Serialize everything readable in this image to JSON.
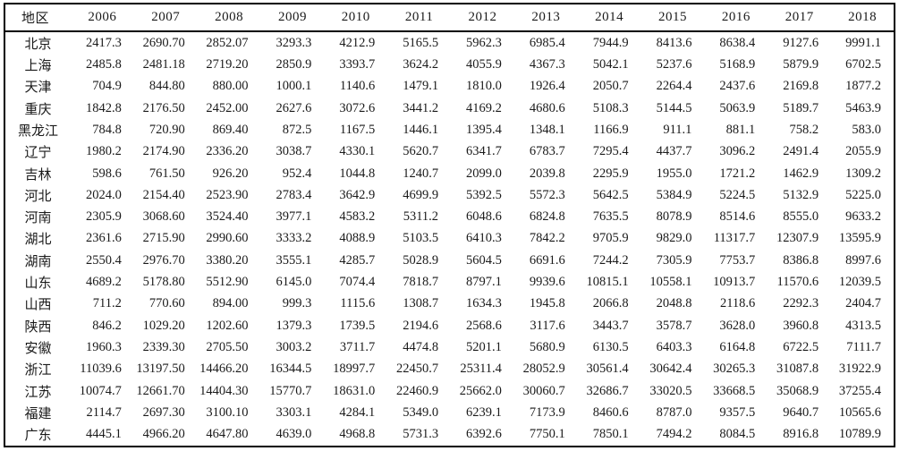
{
  "table": {
    "header": {
      "region_label": "地区",
      "years": [
        "2006",
        "2007",
        "2008",
        "2009",
        "2010",
        "2011",
        "2012",
        "2013",
        "2014",
        "2015",
        "2016",
        "2017",
        "2018"
      ]
    },
    "rows": [
      {
        "region": "北京",
        "values": [
          "2417.3",
          "2690.70",
          "2852.07",
          "3293.3",
          "4212.9",
          "5165.5",
          "5962.3",
          "6985.4",
          "7944.9",
          "8413.6",
          "8638.4",
          "9127.6",
          "9991.1"
        ]
      },
      {
        "region": "上海",
        "values": [
          "2485.8",
          "2481.18",
          "2719.20",
          "2850.9",
          "3393.7",
          "3624.2",
          "4055.9",
          "4367.3",
          "5042.1",
          "5237.6",
          "5168.9",
          "5879.9",
          "6702.5"
        ]
      },
      {
        "region": "天津",
        "values": [
          "704.9",
          "844.80",
          "880.00",
          "1000.1",
          "1140.6",
          "1479.1",
          "1810.0",
          "1926.4",
          "2050.7",
          "2264.4",
          "2437.6",
          "2169.8",
          "1877.2"
        ]
      },
      {
        "region": "重庆",
        "values": [
          "1842.8",
          "2176.50",
          "2452.00",
          "2627.6",
          "3072.6",
          "3441.2",
          "4169.2",
          "4680.6",
          "5108.3",
          "5144.5",
          "5063.9",
          "5189.7",
          "5463.9"
        ]
      },
      {
        "region": "黑龙江",
        "values": [
          "784.8",
          "720.90",
          "869.40",
          "872.5",
          "1167.5",
          "1446.1",
          "1395.4",
          "1348.1",
          "1166.9",
          "911.1",
          "881.1",
          "758.2",
          "583.0"
        ]
      },
      {
        "region": "辽宁",
        "values": [
          "1980.2",
          "2174.90",
          "2336.20",
          "3038.7",
          "4330.1",
          "5620.7",
          "6341.7",
          "6783.7",
          "7295.4",
          "4437.7",
          "3096.2",
          "2491.4",
          "2055.9"
        ]
      },
      {
        "region": "吉林",
        "values": [
          "598.6",
          "761.50",
          "926.20",
          "952.4",
          "1044.8",
          "1240.7",
          "2099.0",
          "2039.8",
          "2295.9",
          "1955.0",
          "1721.2",
          "1462.9",
          "1309.2"
        ]
      },
      {
        "region": "河北",
        "values": [
          "2024.0",
          "2154.40",
          "2523.90",
          "2783.4",
          "3642.9",
          "4699.9",
          "5392.5",
          "5572.3",
          "5642.5",
          "5384.9",
          "5224.5",
          "5132.9",
          "5225.0"
        ]
      },
      {
        "region": "河南",
        "values": [
          "2305.9",
          "3068.60",
          "3524.40",
          "3977.1",
          "4583.2",
          "5311.2",
          "6048.6",
          "6824.8",
          "7635.5",
          "8078.9",
          "8514.6",
          "8555.0",
          "9633.2"
        ]
      },
      {
        "region": "湖北",
        "values": [
          "2361.6",
          "2715.90",
          "2990.60",
          "3333.2",
          "4088.9",
          "5103.5",
          "6410.3",
          "7842.2",
          "9705.9",
          "9829.0",
          "11317.7",
          "12307.9",
          "13595.9"
        ]
      },
      {
        "region": "湖南",
        "values": [
          "2550.4",
          "2976.70",
          "3380.20",
          "3555.1",
          "4285.7",
          "5028.9",
          "5604.5",
          "6691.6",
          "7244.2",
          "7305.9",
          "7753.7",
          "8386.8",
          "8997.6"
        ]
      },
      {
        "region": "山东",
        "values": [
          "4689.2",
          "5178.80",
          "5512.90",
          "6145.0",
          "7074.4",
          "7818.7",
          "8797.1",
          "9939.6",
          "10815.1",
          "10558.1",
          "10913.7",
          "11570.6",
          "12039.5"
        ]
      },
      {
        "region": "山西",
        "values": [
          "711.2",
          "770.60",
          "894.00",
          "999.3",
          "1115.6",
          "1308.7",
          "1634.3",
          "1945.8",
          "2066.8",
          "2048.8",
          "2118.6",
          "2292.3",
          "2404.7"
        ]
      },
      {
        "region": "陕西",
        "values": [
          "846.2",
          "1029.20",
          "1202.60",
          "1379.3",
          "1739.5",
          "2194.6",
          "2568.6",
          "3117.6",
          "3443.7",
          "3578.7",
          "3628.0",
          "3960.8",
          "4313.5"
        ]
      },
      {
        "region": "安徽",
        "values": [
          "1960.3",
          "2339.30",
          "2705.50",
          "3003.2",
          "3711.7",
          "4474.8",
          "5201.1",
          "5680.9",
          "6130.5",
          "6403.3",
          "6164.8",
          "6722.5",
          "7111.7"
        ]
      },
      {
        "region": "浙江",
        "values": [
          "11039.6",
          "13197.50",
          "14466.20",
          "16344.5",
          "18997.7",
          "22450.7",
          "25311.4",
          "28052.9",
          "30561.4",
          "30642.4",
          "30265.3",
          "31087.8",
          "31922.9"
        ]
      },
      {
        "region": "江苏",
        "values": [
          "10074.7",
          "12661.70",
          "14404.30",
          "15770.7",
          "18631.0",
          "22460.9",
          "25662.0",
          "30060.7",
          "32686.7",
          "33020.5",
          "33668.5",
          "35068.9",
          "37255.4"
        ]
      },
      {
        "region": "福建",
        "values": [
          "2114.7",
          "2697.30",
          "3100.10",
          "3303.1",
          "4284.1",
          "5349.0",
          "6239.1",
          "7173.9",
          "8460.6",
          "8787.0",
          "9357.5",
          "9640.7",
          "10565.6"
        ]
      },
      {
        "region": "广东",
        "values": [
          "4445.1",
          "4966.20",
          "4647.80",
          "4639.0",
          "4968.8",
          "5731.3",
          "6392.6",
          "7750.1",
          "7850.1",
          "7494.2",
          "8084.5",
          "8916.8",
          "10789.9"
        ]
      }
    ]
  }
}
